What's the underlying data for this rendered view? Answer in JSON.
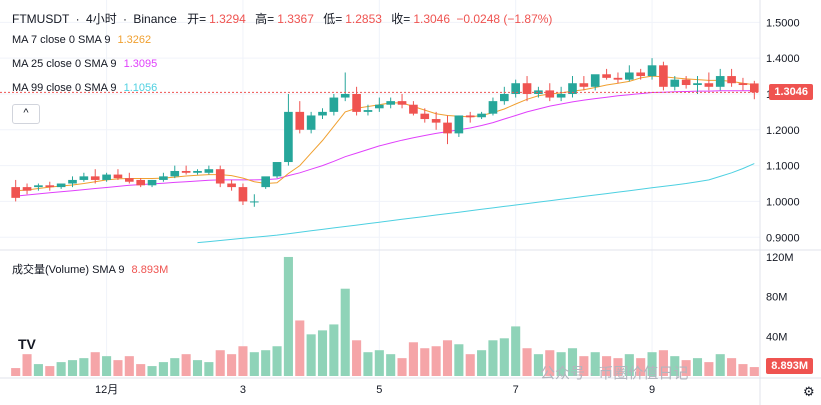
{
  "header": {
    "symbol": "FTMUSDT",
    "sep1": "·",
    "interval": "4小时",
    "sep2": "·",
    "exchange": "Binance",
    "open_label": "开=",
    "open": "1.3294",
    "high_label": "高=",
    "high": "1.3367",
    "low_label": "低=",
    "low": "1.2853",
    "close_label": "收=",
    "close": "1.3046",
    "change": "−0.0248 (−1.87%)"
  },
  "ma_legends": [
    {
      "label": "MA 7 close 0 SMA 9",
      "value": "1.3262",
      "color": "#f0a030"
    },
    {
      "label": "MA 25 close 0 SMA 9",
      "value": "1.3095",
      "color": "#e040fb"
    },
    {
      "label": "MA 99 close 0 SMA 9",
      "value": "1.1056",
      "color": "#4dd0e1"
    }
  ],
  "collapse_icon": "^",
  "volume_legend": {
    "label": "成交量(Volume) SMA 9",
    "value": "8.893M",
    "color": "#ef5350"
  },
  "last_price_tag": "1.3046",
  "last_volume_tag": "8.893M",
  "watermark": "公众号 · 币圈价值日记",
  "logo_text": "TV",
  "settings_icon": "⚙",
  "colors": {
    "up": "#26a69a",
    "down": "#ef5350",
    "up_vol": "#8fd3b8",
    "down_vol": "#f5a5a8",
    "grid": "#f0f3fa",
    "text": "#131722"
  },
  "chart_data": {
    "type": "candlestick",
    "title": "FTMUSDT · 4小时 · Binance",
    "price_axis": {
      "ticks": [
        "1.5000",
        "1.4000",
        "1.3000",
        "1.2000",
        "1.1000",
        "1.0000",
        "0.9000"
      ],
      "ylim": [
        0.87,
        1.54
      ]
    },
    "volume_axis": {
      "ticks": [
        "120M",
        "80M",
        "40M"
      ],
      "ylim": [
        0,
        125
      ]
    },
    "x_tick_labels": [
      {
        "label": "12月",
        "index": 8
      },
      {
        "label": "3",
        "index": 20
      },
      {
        "label": "5",
        "index": 32
      },
      {
        "label": "7",
        "index": 44
      },
      {
        "label": "9",
        "index": 56
      }
    ],
    "candles": [
      [
        1.04,
        1.06,
        1.01,
        1.0,
        8
      ],
      [
        1.04,
        1.05,
        1.03,
        1.02,
        22
      ],
      [
        1.04,
        1.05,
        1.045,
        1.03,
        12
      ],
      [
        1.045,
        1.055,
        1.04,
        1.03,
        10
      ],
      [
        1.04,
        1.05,
        1.05,
        1.035,
        14
      ],
      [
        1.05,
        1.07,
        1.06,
        1.04,
        16
      ],
      [
        1.06,
        1.08,
        1.07,
        1.055,
        18
      ],
      [
        1.07,
        1.09,
        1.06,
        1.05,
        24
      ],
      [
        1.06,
        1.08,
        1.075,
        1.055,
        20
      ],
      [
        1.075,
        1.09,
        1.065,
        1.06,
        16
      ],
      [
        1.065,
        1.08,
        1.055,
        1.05,
        20
      ],
      [
        1.06,
        1.065,
        1.045,
        1.04,
        12
      ],
      [
        1.045,
        1.06,
        1.06,
        1.04,
        10
      ],
      [
        1.06,
        1.08,
        1.07,
        1.055,
        14
      ],
      [
        1.07,
        1.1,
        1.085,
        1.065,
        18
      ],
      [
        1.085,
        1.1,
        1.08,
        1.075,
        22
      ],
      [
        1.08,
        1.09,
        1.085,
        1.075,
        16
      ],
      [
        1.08,
        1.1,
        1.09,
        1.075,
        14
      ],
      [
        1.09,
        1.1,
        1.05,
        1.04,
        26
      ],
      [
        1.05,
        1.06,
        1.04,
        1.03,
        22
      ],
      [
        1.04,
        1.05,
        1.0,
        0.99,
        30
      ],
      [
        1.0,
        1.02,
        1.0,
        0.985,
        24
      ],
      [
        1.04,
        1.06,
        1.07,
        1.035,
        26
      ],
      [
        1.07,
        1.1,
        1.11,
        1.065,
        30
      ],
      [
        1.11,
        1.3,
        1.25,
        1.1,
        120
      ],
      [
        1.25,
        1.28,
        1.2,
        1.19,
        56
      ],
      [
        1.2,
        1.25,
        1.24,
        1.19,
        42
      ],
      [
        1.24,
        1.26,
        1.25,
        1.23,
        46
      ],
      [
        1.25,
        1.3,
        1.29,
        1.24,
        52
      ],
      [
        1.29,
        1.36,
        1.3,
        1.28,
        88
      ],
      [
        1.3,
        1.32,
        1.25,
        1.24,
        36
      ],
      [
        1.25,
        1.27,
        1.255,
        1.24,
        24
      ],
      [
        1.26,
        1.29,
        1.27,
        1.25,
        26
      ],
      [
        1.27,
        1.29,
        1.28,
        1.26,
        22
      ],
      [
        1.28,
        1.3,
        1.27,
        1.26,
        18
      ],
      [
        1.27,
        1.28,
        1.245,
        1.24,
        34
      ],
      [
        1.245,
        1.26,
        1.23,
        1.22,
        28
      ],
      [
        1.23,
        1.25,
        1.22,
        1.2,
        30
      ],
      [
        1.22,
        1.24,
        1.19,
        1.16,
        36
      ],
      [
        1.19,
        1.24,
        1.24,
        1.18,
        32
      ],
      [
        1.24,
        1.25,
        1.235,
        1.22,
        22
      ],
      [
        1.235,
        1.25,
        1.245,
        1.23,
        26
      ],
      [
        1.245,
        1.29,
        1.28,
        1.24,
        36
      ],
      [
        1.28,
        1.32,
        1.3,
        1.27,
        38
      ],
      [
        1.3,
        1.34,
        1.33,
        1.29,
        50
      ],
      [
        1.33,
        1.35,
        1.3,
        1.28,
        28
      ],
      [
        1.3,
        1.32,
        1.31,
        1.29,
        22
      ],
      [
        1.31,
        1.33,
        1.29,
        1.28,
        26
      ],
      [
        1.29,
        1.32,
        1.3,
        1.28,
        24
      ],
      [
        1.3,
        1.35,
        1.33,
        1.29,
        28
      ],
      [
        1.33,
        1.35,
        1.32,
        1.31,
        20
      ],
      [
        1.32,
        1.34,
        1.355,
        1.31,
        24
      ],
      [
        1.355,
        1.37,
        1.345,
        1.34,
        20
      ],
      [
        1.345,
        1.36,
        1.34,
        1.33,
        18
      ],
      [
        1.34,
        1.38,
        1.36,
        1.335,
        22
      ],
      [
        1.36,
        1.37,
        1.35,
        1.34,
        18
      ],
      [
        1.35,
        1.4,
        1.38,
        1.34,
        24
      ],
      [
        1.38,
        1.39,
        1.32,
        1.31,
        26
      ],
      [
        1.32,
        1.35,
        1.34,
        1.31,
        20
      ],
      [
        1.34,
        1.35,
        1.325,
        1.315,
        16
      ],
      [
        1.325,
        1.35,
        1.33,
        1.3,
        18
      ],
      [
        1.33,
        1.36,
        1.32,
        1.31,
        14
      ],
      [
        1.32,
        1.37,
        1.35,
        1.31,
        22
      ],
      [
        1.35,
        1.37,
        1.33,
        1.32,
        18
      ],
      [
        1.33,
        1.345,
        1.325,
        1.31,
        12
      ],
      [
        1.3294,
        1.3367,
        1.3046,
        1.2853,
        9
      ]
    ],
    "ma7": [
      1.03,
      1.032,
      1.036,
      1.04,
      1.043,
      1.046,
      1.05,
      1.055,
      1.06,
      1.063,
      1.064,
      1.064,
      1.064,
      1.065,
      1.068,
      1.071,
      1.073,
      1.075,
      1.075,
      1.072,
      1.065,
      1.055,
      1.05,
      1.052,
      1.078,
      1.1,
      1.135,
      1.17,
      1.21,
      1.25,
      1.26,
      1.265,
      1.27,
      1.275,
      1.275,
      1.265,
      1.255,
      1.245,
      1.24,
      1.238,
      1.236,
      1.24,
      1.248,
      1.258,
      1.272,
      1.285,
      1.295,
      1.3,
      1.303,
      1.308,
      1.312,
      1.318,
      1.325,
      1.33,
      1.335,
      1.345,
      1.35,
      1.348,
      1.345,
      1.342,
      1.34,
      1.338,
      1.338,
      1.335,
      1.33,
      1.326
    ],
    "ma25": [
      1.015,
      1.018,
      1.021,
      1.024,
      1.027,
      1.03,
      1.033,
      1.036,
      1.039,
      1.042,
      1.045,
      1.047,
      1.049,
      1.051,
      1.053,
      1.055,
      1.057,
      1.059,
      1.06,
      1.06,
      1.06,
      1.06,
      1.061,
      1.063,
      1.072,
      1.08,
      1.09,
      1.1,
      1.112,
      1.125,
      1.135,
      1.145,
      1.155,
      1.163,
      1.171,
      1.178,
      1.184,
      1.19,
      1.195,
      1.2,
      1.205,
      1.212,
      1.22,
      1.23,
      1.24,
      1.25,
      1.258,
      1.266,
      1.272,
      1.278,
      1.283,
      1.287,
      1.291,
      1.295,
      1.298,
      1.301,
      1.304,
      1.305,
      1.306,
      1.307,
      1.308,
      1.308,
      1.309,
      1.309,
      1.309,
      1.3095
    ],
    "ma99": [
      null,
      null,
      null,
      null,
      null,
      null,
      null,
      null,
      null,
      null,
      null,
      null,
      null,
      null,
      null,
      null,
      0.885,
      0.888,
      0.891,
      0.894,
      0.897,
      0.9,
      0.903,
      0.906,
      0.91,
      0.914,
      0.918,
      0.922,
      0.926,
      0.93,
      0.934,
      0.938,
      0.942,
      0.946,
      0.95,
      0.954,
      0.958,
      0.962,
      0.966,
      0.97,
      0.974,
      0.978,
      0.982,
      0.986,
      0.99,
      0.994,
      0.998,
      1.002,
      1.006,
      1.01,
      1.014,
      1.018,
      1.022,
      1.026,
      1.03,
      1.034,
      1.038,
      1.042,
      1.046,
      1.05,
      1.055,
      1.06,
      1.07,
      1.08,
      1.092,
      1.1056
    ]
  }
}
